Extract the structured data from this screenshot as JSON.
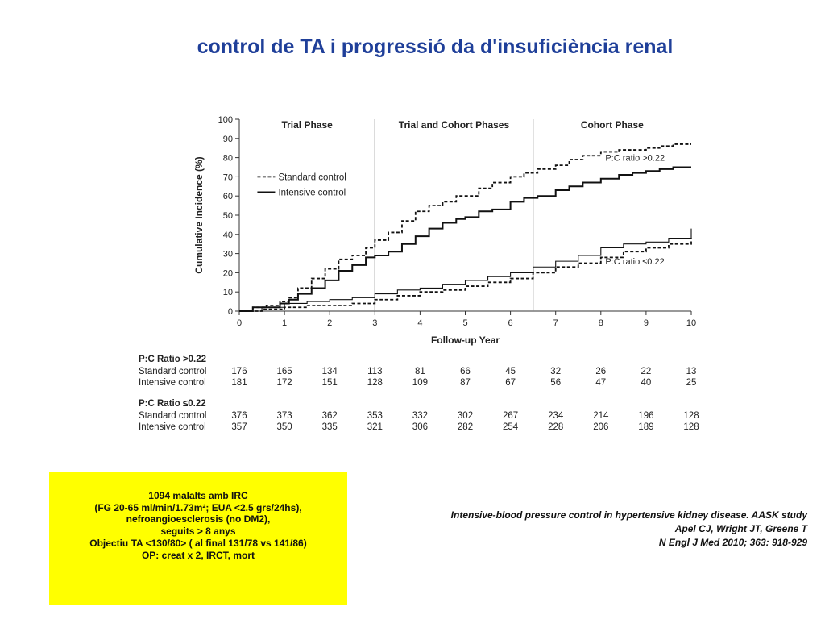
{
  "title": "control de TA i progressió da d'insuficiència renal",
  "chart_data": {
    "type": "line",
    "xlabel": "Follow-up Year",
    "ylabel": "Cumulative Incidence (%)",
    "xlim": [
      0,
      10
    ],
    "ylim": [
      0,
      100
    ],
    "x_ticks": [
      "0",
      "1",
      "2",
      "3",
      "4",
      "5",
      "6",
      "7",
      "8",
      "9",
      "10"
    ],
    "y_ticks": [
      "0",
      "10",
      "20",
      "30",
      "40",
      "50",
      "60",
      "70",
      "80",
      "90",
      "100"
    ],
    "phases": [
      {
        "label": "Trial Phase",
        "center": 1.5
      },
      {
        "label": "Trial and Cohort Phases",
        "center": 4.75
      },
      {
        "label": "Cohort Phase",
        "center": 8.25
      }
    ],
    "phase_dividers": [
      3,
      6.5
    ],
    "legend": {
      "position": "upper-left",
      "entries": [
        {
          "label": "Standard control",
          "style": "dashed"
        },
        {
          "label": "Intensive control",
          "style": "solid"
        }
      ]
    },
    "annotations": [
      {
        "text": "P:C ratio >0.22",
        "x": 8.1,
        "y": 80
      },
      {
        "text": "P:C ratio ≤0.22",
        "x": 8.1,
        "y": 26
      }
    ],
    "series": [
      {
        "name": "Standard control",
        "group": "P:C ratio >0.22",
        "style": "dashed",
        "x": [
          0,
          0.3,
          0.6,
          0.9,
          1.1,
          1.3,
          1.6,
          1.9,
          2.2,
          2.5,
          2.8,
          3.0,
          3.3,
          3.6,
          3.9,
          4.2,
          4.5,
          4.8,
          5.0,
          5.3,
          5.6,
          6.0,
          6.3,
          6.6,
          7.0,
          7.3,
          7.6,
          8.0,
          8.4,
          8.7,
          9.0,
          9.3,
          9.6,
          10.0
        ],
        "y": [
          0,
          2,
          3,
          5,
          7,
          12,
          17,
          22,
          27,
          29,
          33,
          37,
          41,
          47,
          52,
          55,
          57,
          60,
          60,
          64,
          67,
          70,
          72,
          74,
          76,
          79,
          81,
          83,
          84,
          84,
          85,
          86,
          87,
          87
        ]
      },
      {
        "name": "Intensive control",
        "group": "P:C ratio >0.22",
        "style": "solid",
        "x": [
          0,
          0.3,
          0.6,
          0.9,
          1.1,
          1.3,
          1.6,
          1.9,
          2.2,
          2.5,
          2.8,
          3.0,
          3.3,
          3.6,
          3.9,
          4.2,
          4.5,
          4.8,
          5.0,
          5.3,
          5.6,
          6.0,
          6.3,
          6.6,
          7.0,
          7.3,
          7.6,
          8.0,
          8.4,
          8.7,
          9.0,
          9.3,
          9.6,
          10.0
        ],
        "y": [
          0,
          2,
          2,
          4,
          6,
          9,
          12,
          16,
          21,
          24,
          28,
          29,
          31,
          35,
          39,
          43,
          46,
          48,
          49,
          52,
          53,
          57,
          59,
          60,
          63,
          65,
          67,
          69,
          71,
          72,
          73,
          74,
          75,
          75
        ]
      },
      {
        "name": "Intensive control",
        "group": "P:C ratio ≤0.22",
        "style": "solid",
        "x": [
          0,
          0.5,
          1.0,
          1.5,
          2.0,
          2.5,
          3.0,
          3.5,
          4.0,
          4.5,
          5.0,
          5.5,
          6.0,
          6.5,
          7.0,
          7.5,
          8.0,
          8.5,
          9.0,
          9.5,
          10.0
        ],
        "y": [
          0,
          2,
          4,
          5,
          6,
          7,
          9,
          11,
          12,
          14,
          16,
          18,
          20,
          23,
          26,
          29,
          33,
          35,
          36,
          38,
          43
        ]
      },
      {
        "name": "Standard control",
        "group": "P:C ratio ≤0.22",
        "style": "dashed",
        "x": [
          0,
          0.5,
          1.0,
          1.5,
          2.0,
          2.5,
          3.0,
          3.5,
          4.0,
          4.5,
          5.0,
          5.5,
          6.0,
          6.5,
          7.0,
          7.5,
          8.0,
          8.5,
          9.0,
          9.5,
          10.0
        ],
        "y": [
          0,
          1,
          2,
          3,
          3,
          4,
          6,
          8,
          10,
          11,
          13,
          15,
          17,
          20,
          23,
          25,
          28,
          31,
          33,
          35,
          38
        ]
      }
    ],
    "risk_table": {
      "years": [
        "0",
        "1",
        "2",
        "3",
        "4",
        "5",
        "6",
        "7",
        "8",
        "9",
        "10"
      ],
      "groups": [
        {
          "heading": "P:C Ratio >0.22",
          "rows": [
            {
              "label": "Standard control",
              "values": [
                "176",
                "165",
                "134",
                "113",
                "81",
                "66",
                "45",
                "32",
                "26",
                "22",
                "13"
              ]
            },
            {
              "label": "Intensive control",
              "values": [
                "181",
                "172",
                "151",
                "128",
                "109",
                "87",
                "67",
                "56",
                "47",
                "40",
                "25"
              ]
            }
          ]
        },
        {
          "heading": "P:C Ratio ≤0.22",
          "rows": [
            {
              "label": "Standard control",
              "values": [
                "376",
                "373",
                "362",
                "353",
                "332",
                "302",
                "267",
                "234",
                "214",
                "196",
                "128"
              ]
            },
            {
              "label": "Intensive control",
              "values": [
                "357",
                "350",
                "335",
                "321",
                "306",
                "282",
                "254",
                "228",
                "206",
                "189",
                "128"
              ]
            }
          ]
        }
      ]
    }
  },
  "study_box": {
    "lines": [
      "1094 malalts amb IRC",
      "(FG 20-65 ml/min/1.73m²; EUA <2.5 grs/24hs),",
      "nefroangioesclerosis (no DM2),",
      "seguits > 8 anys",
      "Objectiu TA <130/80> ( al final 131/78 vs 141/86)",
      "OP:  creat x 2, IRCT, mort"
    ]
  },
  "citation": {
    "lines": [
      "Intensive-blood pressure control in hypertensive kidney disease. AASK study",
      "Apel CJ, Wright JT, Greene T",
      "N Engl J Med 2010; 363: 918-929"
    ]
  }
}
